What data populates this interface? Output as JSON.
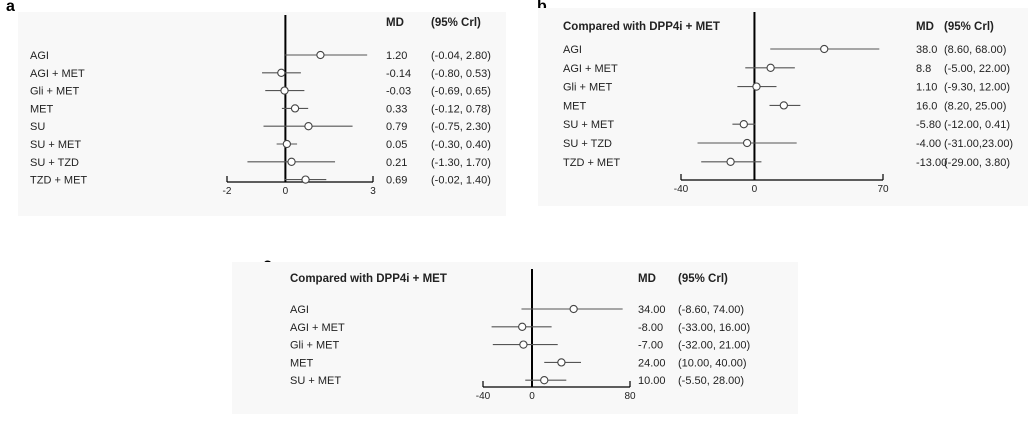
{
  "panels": {
    "a": {
      "letter": "a"
    },
    "b": {
      "letter": "b"
    },
    "c": {
      "letter": "c"
    }
  },
  "chart_data": [
    {
      "type": "forest",
      "panel": "a",
      "title": "",
      "col_md": "MD",
      "col_ci": "(95% Crl)",
      "xlim": [
        -2,
        3
      ],
      "ticks": [
        -2,
        0,
        3
      ],
      "rows": [
        {
          "label": "AGI",
          "md": 1.2,
          "lo": -0.04,
          "hi": 2.8,
          "md_text": "1.20",
          "ci_text": "(-0.04, 2.80)"
        },
        {
          "label": "AGI + MET",
          "md": -0.14,
          "lo": -0.8,
          "hi": 0.53,
          "md_text": "-0.14",
          "ci_text": "(-0.80, 0.53)"
        },
        {
          "label": "Gli + MET",
          "md": -0.03,
          "lo": -0.69,
          "hi": 0.65,
          "md_text": "-0.03",
          "ci_text": "(-0.69, 0.65)"
        },
        {
          "label": "MET",
          "md": 0.33,
          "lo": -0.12,
          "hi": 0.78,
          "md_text": "0.33",
          "ci_text": "(-0.12, 0.78)"
        },
        {
          "label": "SU",
          "md": 0.79,
          "lo": -0.75,
          "hi": 2.3,
          "md_text": "0.79",
          "ci_text": "(-0.75, 2.30)"
        },
        {
          "label": "SU + MET",
          "md": 0.05,
          "lo": -0.3,
          "hi": 0.4,
          "md_text": "0.05",
          "ci_text": "(-0.30, 0.40)"
        },
        {
          "label": "SU + TZD",
          "md": 0.21,
          "lo": -1.3,
          "hi": 1.7,
          "md_text": "0.21",
          "ci_text": "(-1.30, 1.70)"
        },
        {
          "label": "TZD + MET",
          "md": 0.69,
          "lo": -0.02,
          "hi": 1.4,
          "md_text": "0.69",
          "ci_text": "(-0.02, 1.40)"
        }
      ]
    },
    {
      "type": "forest",
      "panel": "b",
      "title": "Compared with DPP4i + MET",
      "col_md": "MD",
      "col_ci": "(95% Crl)",
      "xlim": [
        -40,
        70
      ],
      "ticks": [
        -40,
        0,
        70
      ],
      "rows": [
        {
          "label": "AGI",
          "md": 38.0,
          "lo": 8.6,
          "hi": 68.0,
          "md_text": "38.0",
          "ci_text": "(8.60, 68.00)"
        },
        {
          "label": "AGI + MET",
          "md": 8.8,
          "lo": -5.0,
          "hi": 22.0,
          "md_text": "8.8",
          "ci_text": "(-5.00, 22.00)"
        },
        {
          "label": "Gli + MET",
          "md": 1.1,
          "lo": -9.3,
          "hi": 12.0,
          "md_text": "1.10",
          "ci_text": "(-9.30, 12.00)"
        },
        {
          "label": "MET",
          "md": 16.0,
          "lo": 8.2,
          "hi": 25.0,
          "md_text": "16.0",
          "ci_text": "(8.20, 25.00)"
        },
        {
          "label": "SU + MET",
          "md": -5.8,
          "lo": -12.0,
          "hi": 0.41,
          "md_text": "-5.80",
          "ci_text": "(-12.00, 0.41)"
        },
        {
          "label": "SU + TZD",
          "md": -4.0,
          "lo": -31.0,
          "hi": 23.0,
          "md_text": "-4.00",
          "ci_text": "(-31.00,23.00)"
        },
        {
          "label": "TZD + MET",
          "md": -13.0,
          "lo": -29.0,
          "hi": 3.8,
          "md_text": "-13.00",
          "ci_text": "(-29.00, 3.80)"
        }
      ]
    },
    {
      "type": "forest",
      "panel": "c",
      "title": "Compared with DPP4i + MET",
      "col_md": "MD",
      "col_ci": "(95% Crl)",
      "xlim": [
        -40,
        80
      ],
      "ticks": [
        -40,
        0,
        80
      ],
      "rows": [
        {
          "label": "AGI",
          "md": 34.0,
          "lo": -8.6,
          "hi": 74.0,
          "md_text": "34.00",
          "ci_text": "(-8.60, 74.00)"
        },
        {
          "label": "AGI + MET",
          "md": -8.0,
          "lo": -33.0,
          "hi": 16.0,
          "md_text": "-8.00",
          "ci_text": "(-33.00, 16.00)"
        },
        {
          "label": "Gli + MET",
          "md": -7.0,
          "lo": -32.0,
          "hi": 21.0,
          "md_text": "-7.00",
          "ci_text": "(-32.00, 21.00)"
        },
        {
          "label": "MET",
          "md": 24.0,
          "lo": 10.0,
          "hi": 40.0,
          "md_text": "24.00",
          "ci_text": "(10.00, 40.00)"
        },
        {
          "label": "SU + MET",
          "md": 10.0,
          "lo": -5.5,
          "hi": 28.0,
          "md_text": "10.00",
          "ci_text": "(-5.50, 28.00)"
        }
      ]
    }
  ]
}
